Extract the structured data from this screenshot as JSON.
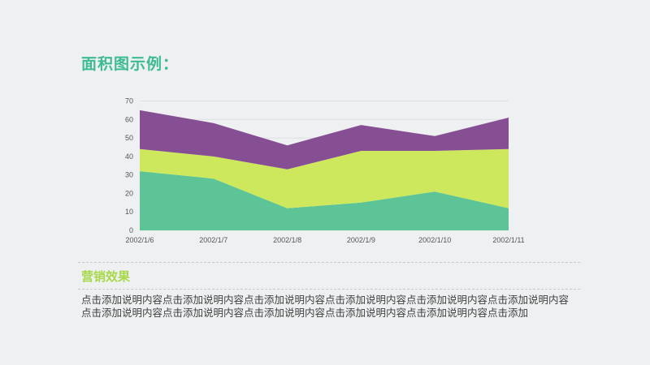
{
  "colors": {
    "title": "#3dbb94",
    "subtitle": "#a8d84a",
    "series_bottom": "#5cc497",
    "series_middle": "#cde85c",
    "series_top": "#874f93"
  },
  "page": {
    "title": "面积图示例：",
    "section_title": "营销效果",
    "body_text": "点击添加说明内容点击添加说明内容点击添加说明内容点击添加说明内容点击添加说明内容点击添加说明内容点击添加说明内容点击添加说明内容点击添加说明内容点击添加说明内容点击添加说明内容点击添加"
  },
  "chart_data": {
    "type": "area",
    "stacked": true,
    "categories": [
      "2002/1/6",
      "2002/1/7",
      "2002/1/8",
      "2002/1/9",
      "2002/1/10",
      "2002/1/11"
    ],
    "series": [
      {
        "values": [
          32,
          28,
          12,
          15,
          21,
          12
        ]
      },
      {
        "values": [
          12,
          12,
          21,
          28,
          22,
          32
        ]
      },
      {
        "values": [
          21,
          18,
          13,
          14,
          8,
          17
        ]
      }
    ],
    "yticks": [
      0,
      10,
      20,
      30,
      40,
      50,
      60,
      70
    ],
    "ylim": [
      0,
      70
    ],
    "xlabel": "",
    "ylabel": "",
    "grid": true,
    "legend": "none"
  }
}
